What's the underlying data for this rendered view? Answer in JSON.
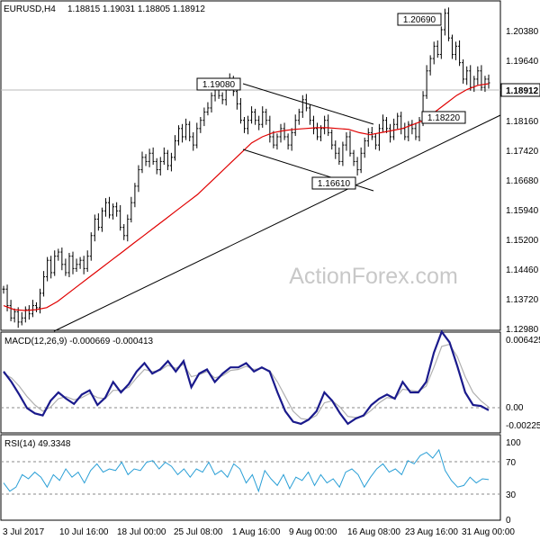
{
  "header": {
    "symbol": "EURUSD,H4",
    "ohlc": "1.18815 1.19031 1.18805 1.18912"
  },
  "watermark": "ActionForex.com",
  "colors": {
    "price_bar": "#000000",
    "ma": "#e00000",
    "macd": "#1a1a8c",
    "signal": "#b0b0b0",
    "rsi": "#2a9fd6",
    "trendline": "#000000",
    "grid_dash": "#888888"
  },
  "chart_data": [
    {
      "panel": "price",
      "type": "ohlc",
      "title": "EURUSD,H4",
      "ylim": [
        1.129,
        1.209
      ],
      "y_ticks": [
        "1.20380",
        "1.19640",
        "1.18160",
        "1.17420",
        "1.16680",
        "1.15940",
        "1.15200",
        "1.14460",
        "1.13720",
        "1.12980"
      ],
      "current_price": "1.18912",
      "closes": [
        1.139,
        1.135,
        1.132,
        1.1335,
        1.131,
        1.132,
        1.134,
        1.133,
        1.135,
        1.1345,
        1.138,
        1.142,
        1.146,
        1.143,
        1.147,
        1.148,
        1.145,
        1.143,
        1.147,
        1.144,
        1.145,
        1.146,
        1.144,
        1.147,
        1.152,
        1.156,
        1.154,
        1.158,
        1.16,
        1.157,
        1.159,
        1.158,
        1.154,
        1.152,
        1.156,
        1.16,
        1.164,
        1.168,
        1.171,
        1.17,
        1.172,
        1.17,
        1.168,
        1.17,
        1.172,
        1.169,
        1.171,
        1.175,
        1.178,
        1.176,
        1.179,
        1.176,
        1.174,
        1.178,
        1.18,
        1.182,
        1.183,
        1.186,
        1.188,
        1.186,
        1.185,
        1.188,
        1.19,
        1.187,
        1.184,
        1.18,
        1.178,
        1.18,
        1.182,
        1.18,
        1.179,
        1.182,
        1.18,
        1.176,
        1.174,
        1.176,
        1.178,
        1.176,
        1.174,
        1.177,
        1.18,
        1.182,
        1.185,
        1.183,
        1.18,
        1.178,
        1.176,
        1.178,
        1.18,
        1.177,
        1.174,
        1.172,
        1.17,
        1.174,
        1.176,
        1.172,
        1.17,
        1.168,
        1.172,
        1.175,
        1.177,
        1.176,
        1.174,
        1.178,
        1.18,
        1.178,
        1.176,
        1.179,
        1.181,
        1.178,
        1.176,
        1.179,
        1.178,
        1.176,
        1.18,
        1.186,
        1.192,
        1.195,
        1.198,
        1.196,
        1.202,
        1.206,
        1.2,
        1.196,
        1.198,
        1.194,
        1.19,
        1.192,
        1.188,
        1.19,
        1.192,
        1.188,
        1.19,
        1.1891
      ],
      "ma_values": [
        1.135,
        1.134,
        1.1338,
        1.134,
        1.1345,
        1.136,
        1.138,
        1.14,
        1.142,
        1.144,
        1.146,
        1.148,
        1.15,
        1.152,
        1.154,
        1.156,
        1.158,
        1.16,
        1.162,
        1.1645,
        1.167,
        1.1695,
        1.172,
        1.1745,
        1.176,
        1.177,
        1.1775,
        1.1778,
        1.178,
        1.1782,
        1.1782,
        1.178,
        1.1778,
        1.177,
        1.1765,
        1.177,
        1.1775,
        1.178,
        1.179,
        1.18,
        1.182,
        1.184,
        1.186,
        1.1875,
        1.1885,
        1.1889
      ],
      "annotations": [
        {
          "label": "1.19080",
          "value": 1.1908
        },
        {
          "label": "1.16610",
          "value": 1.1661
        },
        {
          "label": "1.18220",
          "value": 1.1822
        },
        {
          "label": "1.20690",
          "value": 1.2069
        }
      ],
      "trendline": {
        "from": [
          0,
          1.1275
        ],
        "to": [
          1,
          1.1836
        ]
      },
      "channel_upper": {
        "from": [
          "1 Aug 16:00",
          1.1908
        ],
        "to": [
          "16 Aug 08:00",
          1.1815
        ]
      },
      "channel_lower": {
        "from": [
          "1 Aug 16:00",
          1.1765
        ],
        "to": [
          "16 Aug 08:00",
          1.1655
        ]
      }
    },
    {
      "panel": "macd",
      "type": "line",
      "label": "MACD(12,26,9) -0.000669 -0.000413",
      "ylim": [
        -0.0027,
        0.0066
      ],
      "y_ticks": [
        "0.006425",
        "0.00",
        "-0.002251"
      ],
      "series": [
        {
          "values": [
            0.003,
            0.002,
            0.0008,
            -0.0005,
            -0.001,
            -0.0012,
            0.0002,
            0.001,
            0.0004,
            -0.0001,
            0.0008,
            0.0012,
            -0.0002,
            0.0005,
            0.002,
            0.001,
            0.0018,
            0.003,
            0.0038,
            0.0028,
            0.0032,
            0.004,
            0.003,
            0.004,
            0.0015,
            0.0028,
            0.0032,
            0.002,
            0.0028,
            0.0034,
            0.0034,
            0.0038,
            0.003,
            0.0034,
            0.003,
            0.001,
            -0.0008,
            -0.0018,
            -0.002,
            -0.0016,
            -0.0008,
            0.001,
            0.0002,
            -0.001,
            -0.002,
            -0.0015,
            -0.0012,
            -0.0002,
            0.0004,
            0.0008,
            0.0004,
            0.002,
            0.001,
            0.001,
            0.002,
            0.0048,
            0.0068,
            0.0058,
            0.0035,
            0.001,
            -0.0002,
            -0.0003,
            -0.0007
          ]
        },
        {
          "values": [
            0.0028,
            0.0024,
            0.0016,
            0.0006,
            -0.0002,
            -0.0008,
            -0.0004,
            0.0004,
            0.0006,
            0.0003,
            0.0005,
            0.0009,
            0.0005,
            0.0004,
            0.0012,
            0.0012,
            0.0015,
            0.0024,
            0.0032,
            0.003,
            0.0031,
            0.0036,
            0.0033,
            0.0037,
            0.0025,
            0.0027,
            0.003,
            0.0024,
            0.0026,
            0.0031,
            0.0032,
            0.0035,
            0.0032,
            0.0033,
            0.0031,
            0.002,
            0.0006,
            -0.0008,
            -0.0015,
            -0.0016,
            -0.0012,
            0.0,
            0.0002,
            -0.0004,
            -0.0013,
            -0.0014,
            -0.0013,
            -0.0007,
            0.0,
            0.0005,
            0.0004,
            0.0013,
            0.0012,
            0.0011,
            0.0016,
            0.0034,
            0.0054,
            0.0056,
            0.0044,
            0.0025,
            0.001,
            0.0002,
            -0.0004
          ]
        }
      ]
    },
    {
      "panel": "rsi",
      "type": "line",
      "label": "RSI(14) 49.3348",
      "ylim": [
        0,
        100
      ],
      "y_ticks": [
        "100",
        "70",
        "30",
        "0"
      ],
      "levels": [
        70,
        30
      ],
      "values": [
        45,
        35,
        40,
        55,
        50,
        58,
        52,
        40,
        55,
        48,
        62,
        52,
        58,
        45,
        60,
        68,
        58,
        62,
        60,
        70,
        55,
        62,
        60,
        70,
        72,
        62,
        70,
        65,
        55,
        62,
        52,
        62,
        58,
        70,
        55,
        60,
        52,
        68,
        62,
        45,
        55,
        35,
        60,
        50,
        42,
        55,
        38,
        52,
        48,
        58,
        42,
        55,
        45,
        50,
        40,
        58,
        62,
        55,
        40,
        52,
        62,
        68,
        58,
        62,
        55,
        72,
        68,
        78,
        82,
        75,
        85,
        60,
        48,
        40,
        42,
        52,
        45,
        50,
        49
      ]
    }
  ],
  "x_axis_labels": [
    "3 Jul 2017",
    "10 Jul 16:00",
    "18 Jul 00:00",
    "25 Jul 08:00",
    "1 Aug 16:00",
    "9 Aug 00:00",
    "16 Aug 08:00",
    "23 Aug 16:00",
    "31 Aug 00:00"
  ]
}
